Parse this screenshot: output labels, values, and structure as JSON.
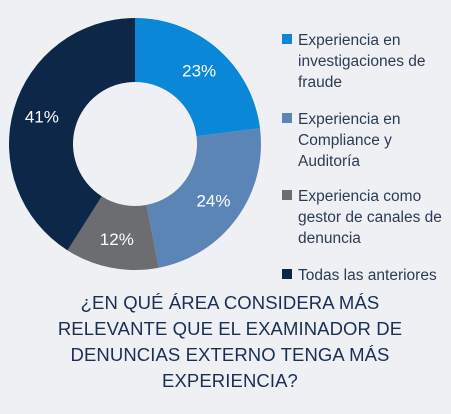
{
  "chart_data": {
    "type": "pie",
    "donut": true,
    "categories": [
      "Experiencia en investigaciones de fraude",
      "Experiencia en Compliance y Auditoría",
      "Experiencia como gestor de canales de denuncia",
      "Todas las anteriores"
    ],
    "values": [
      23,
      24,
      12,
      41
    ],
    "labels": [
      "23%",
      "24%",
      "12%",
      "41%"
    ],
    "colors": [
      "#0a87d6",
      "#5b85b4",
      "#6b6d70",
      "#0c2748"
    ],
    "legend_position": "right"
  },
  "legend": {
    "items": [
      {
        "label": "Experiencia en investigaciones de fraude",
        "color": "#0a87d6"
      },
      {
        "label": "Experiencia en Compliance y Auditoría",
        "color": "#5b85b4"
      },
      {
        "label": "Experiencia como gestor de canales de denuncia",
        "color": "#6b6d70"
      },
      {
        "label": "Todas las anteriores",
        "color": "#0c2748"
      }
    ]
  },
  "question": "¿EN QUÉ ÁREA CONSIDERA MÁS RELEVANTE QUE EL EXAMINADOR DE DENUNCIAS EXTERNO TENGA MÁS EXPERIENCIA?"
}
